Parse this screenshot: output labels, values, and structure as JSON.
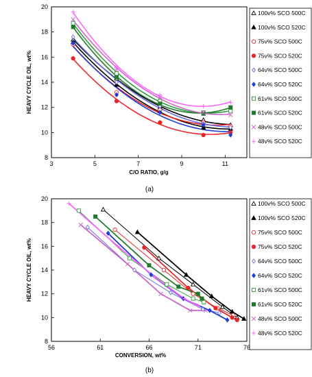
{
  "chart_data": [
    {
      "type": "scatter",
      "caption": "(a)",
      "xlabel": "C/O RATIO, g/g",
      "ylabel": "HEAVY CYCLE OIL, wt%",
      "xlim": [
        3,
        12
      ],
      "ylim": [
        8,
        20
      ],
      "xticks": [
        3,
        5,
        7,
        9,
        11
      ],
      "yticks": [
        8,
        10,
        12,
        14,
        16,
        18,
        20
      ],
      "grid": false,
      "legend": "right",
      "trendlines": "quadratic",
      "series": [
        {
          "name": "100v% SCO 500C",
          "marker": "triangle-open",
          "color": "#000000",
          "x": [
            4,
            6,
            8,
            10,
            11.25
          ],
          "y": [
            17.4,
            14.3,
            12.0,
            11.0,
            10.6
          ]
        },
        {
          "name": "100v% SCO 520C",
          "marker": "triangle",
          "color": "#000000",
          "x": [
            4,
            6,
            8,
            10,
            11.25
          ],
          "y": [
            17.2,
            13.8,
            11.7,
            10.4,
            10.3
          ]
        },
        {
          "name": "75v% SCO 500C",
          "marker": "circle-open",
          "color": "#e8262a",
          "x": [
            4,
            6,
            8,
            10,
            11.25
          ],
          "y": [
            17.0,
            13.2,
            11.8,
            10.8,
            10.5
          ]
        },
        {
          "name": "75v% SCO 520C",
          "marker": "circle",
          "color": "#e8262a",
          "x": [
            4,
            6,
            8,
            10,
            11.25
          ],
          "y": [
            15.9,
            12.5,
            10.8,
            9.8,
            10.0
          ]
        },
        {
          "name": "64v% SCO 500C",
          "marker": "diamond-open",
          "color": "#6a6ae0",
          "x": [
            4,
            6,
            8,
            10,
            11.25
          ],
          "y": [
            17.6,
            14.0,
            12.1,
            10.7,
            10.4
          ]
        },
        {
          "name": "64v% SCO 520C",
          "marker": "diamond",
          "color": "#1c3fd6",
          "x": [
            4,
            6,
            8,
            10,
            11.25
          ],
          "y": [
            17.1,
            13.0,
            11.6,
            10.6,
            9.8
          ]
        },
        {
          "name": "61v% SCO 500C",
          "marker": "square-open",
          "color": "#2e9e3a",
          "x": [
            4,
            6,
            8,
            10,
            11.25
          ],
          "y": [
            18.7,
            14.7,
            12.5,
            11.6,
            11.7
          ]
        },
        {
          "name": "61v% SCO 520C",
          "marker": "square",
          "color": "#1f7a2b",
          "x": [
            4,
            6,
            8,
            10,
            11.25
          ],
          "y": [
            18.4,
            14.4,
            12.3,
            11.5,
            12.0
          ]
        },
        {
          "name": "48v% SCO 500C",
          "marker": "x",
          "color": "#cc66cc",
          "x": [
            4,
            6,
            8,
            10,
            11.25
          ],
          "y": [
            19.0,
            15.0,
            12.8,
            11.6,
            11.4
          ]
        },
        {
          "name": "48v% SCO 520C",
          "marker": "plus",
          "color": "#ff66ff",
          "x": [
            4,
            6,
            8,
            10,
            11.25
          ],
          "y": [
            19.6,
            15.2,
            13.0,
            12.1,
            12.4
          ]
        }
      ]
    },
    {
      "type": "line",
      "caption": "(b)",
      "xlabel": "CONVERSION, wt%",
      "ylabel": "HEAVY CYCLE OIL, wt%",
      "xlim": [
        56,
        76
      ],
      "ylim": [
        8,
        20
      ],
      "xticks": [
        56,
        61,
        66,
        71,
        76
      ],
      "yticks": [
        8,
        10,
        12,
        14,
        16,
        18,
        20
      ],
      "grid": false,
      "legend": "right",
      "series": [
        {
          "name": "100v% SCO 500C",
          "marker": "triangle-open",
          "color": "#000000",
          "x": [
            61.3,
            67.0,
            70.5,
            73.5,
            75.0
          ],
          "y": [
            19.1,
            15.0,
            12.8,
            10.9,
            10.0
          ]
        },
        {
          "name": "100v% SCO 520C",
          "marker": "triangle",
          "color": "#000000",
          "x": [
            64.8,
            69.8,
            72.4,
            74.5,
            75.7
          ],
          "y": [
            17.2,
            13.6,
            11.8,
            10.5,
            9.9
          ]
        },
        {
          "name": "75v% SCO 500C",
          "marker": "circle-open",
          "color": "#e8262a",
          "x": [
            62.5,
            67.5,
            70.5,
            73.0,
            74.6
          ],
          "y": [
            17.4,
            14.0,
            12.0,
            10.8,
            10.2
          ]
        },
        {
          "name": "75v% SCO 520C",
          "marker": "circle",
          "color": "#e8262a",
          "x": [
            65.5,
            70.0,
            72.8,
            74.5,
            75.0
          ],
          "y": [
            15.9,
            12.5,
            10.8,
            10.0,
            9.8
          ]
        },
        {
          "name": "64v% SCO 500C",
          "marker": "diamond-open",
          "color": "#6a6ae0",
          "x": [
            59.7,
            64.5,
            68.2,
            71.5,
            73.2
          ],
          "y": [
            17.6,
            14.0,
            12.1,
            10.7,
            10.4
          ]
        },
        {
          "name": "64v% SCO 520C",
          "marker": "diamond",
          "color": "#1c3fd6",
          "x": [
            61.8,
            66.2,
            69.5,
            72.2,
            74.0
          ],
          "y": [
            17.1,
            13.6,
            11.6,
            10.6,
            9.8
          ]
        },
        {
          "name": "61v% SCO 500C",
          "marker": "square-open",
          "color": "#2e9e3a",
          "x": [
            58.8,
            64.0,
            67.8,
            70.5,
            71.6
          ],
          "y": [
            19.0,
            15.0,
            12.8,
            11.6,
            11.3
          ]
        },
        {
          "name": "61v% SCO 520C",
          "marker": "square",
          "color": "#1f7a2b",
          "x": [
            60.5,
            66.0,
            69.0,
            71.0,
            71.4
          ],
          "y": [
            18.5,
            14.4,
            12.6,
            12.0,
            11.6
          ]
        },
        {
          "name": "48v% SCO 500C",
          "marker": "x",
          "color": "#cc66cc",
          "x": [
            59.0,
            63.8,
            67.2,
            70.2,
            71.8
          ],
          "y": [
            17.8,
            14.5,
            12.0,
            10.6,
            10.6
          ]
        },
        {
          "name": "48v% SCO 520C",
          "marker": "plus",
          "color": "#ff66ff",
          "x": [
            57.8,
            62.8,
            66.6,
            69.6,
            71.0
          ],
          "y": [
            19.6,
            16.0,
            13.4,
            11.6,
            11.0
          ]
        }
      ]
    }
  ]
}
